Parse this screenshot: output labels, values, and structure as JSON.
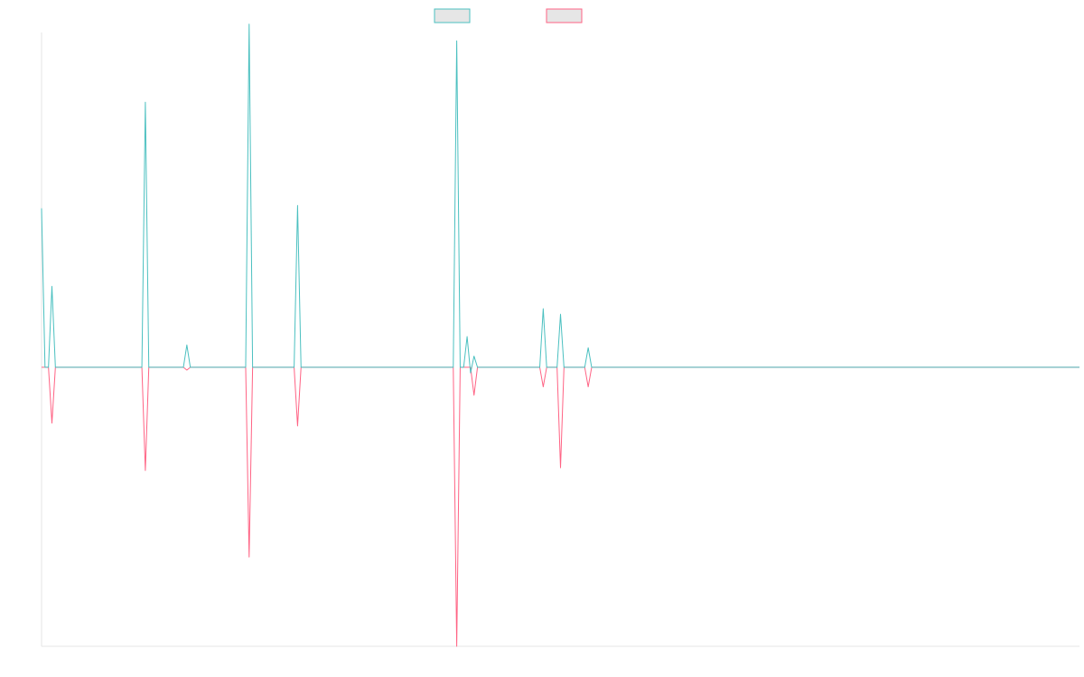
{
  "chart_data": {
    "type": "line",
    "title": "",
    "xlabel": "",
    "ylabel": "",
    "grid": false,
    "legend_position": "top-center",
    "ylim": [
      -1,
      1.2
    ],
    "x": [
      0,
      1,
      2,
      3,
      4,
      5,
      6,
      7,
      8,
      9,
      10,
      11,
      12,
      13,
      14,
      15,
      16,
      17,
      18,
      19,
      20,
      21,
      22,
      23,
      24,
      25,
      26,
      27,
      28,
      29,
      30,
      31,
      32,
      33,
      34,
      35,
      36,
      37,
      38,
      39,
      40,
      41,
      42,
      43,
      44,
      45,
      46,
      47,
      48,
      49,
      50,
      51,
      52,
      53,
      54,
      55,
      56,
      57,
      58,
      59,
      60,
      61,
      62,
      63,
      64,
      65,
      66,
      67,
      68,
      69,
      70,
      71,
      72,
      73,
      74,
      75,
      76,
      77,
      78,
      79,
      80,
      81,
      82,
      83,
      84,
      85,
      86,
      87,
      88,
      89,
      90,
      91,
      92,
      93,
      94,
      95,
      96,
      97,
      98,
      99,
      100,
      101,
      102,
      103,
      104,
      105,
      106,
      107,
      108,
      109,
      110,
      111,
      112,
      113,
      114,
      115,
      116,
      117,
      118,
      119,
      120,
      121,
      122,
      123,
      124,
      125,
      126,
      127,
      128,
      129,
      130,
      131,
      132,
      133,
      134,
      135,
      136,
      137,
      138,
      139,
      140,
      141,
      142,
      143,
      144,
      145,
      146,
      147,
      148,
      149,
      150,
      151,
      152,
      153,
      154,
      155,
      156,
      157,
      158,
      159,
      160,
      161,
      162,
      163,
      164,
      165,
      166,
      167,
      168,
      169,
      170,
      171,
      172,
      173,
      174,
      175,
      176,
      177,
      178,
      179,
      180,
      181,
      182,
      183,
      184,
      185,
      186,
      187,
      188,
      189,
      190,
      191,
      192,
      193,
      194,
      195,
      196,
      197,
      198,
      199,
      200,
      201,
      202,
      203,
      204,
      205,
      206,
      207,
      208,
      209,
      210,
      211,
      212,
      213,
      214,
      215,
      216,
      217,
      218,
      219,
      220,
      221,
      222,
      223,
      224,
      225,
      226,
      227,
      228,
      229,
      230,
      231,
      232,
      233,
      234,
      235,
      236,
      237,
      238,
      239,
      240,
      241,
      242,
      243,
      244,
      245,
      246,
      247,
      248,
      249,
      250,
      251,
      252,
      253,
      254,
      255,
      256,
      257,
      258,
      259,
      260,
      261,
      262,
      263,
      264,
      265,
      266,
      267,
      268,
      269,
      270,
      271,
      272,
      273,
      274,
      275,
      276,
      277,
      278,
      279,
      280,
      281,
      282,
      283,
      284,
      285,
      286,
      287,
      288,
      289,
      290,
      291,
      292,
      293,
      294,
      295,
      296,
      297,
      298,
      299,
      300
    ],
    "series": [
      {
        "name": "",
        "color": "#4bc0c0",
        "fill": "#e6e6e6",
        "points": [
          [
            0,
            0.57
          ],
          [
            1,
            0
          ],
          [
            2,
            0
          ],
          [
            3,
            0.29
          ],
          [
            4,
            0
          ],
          [
            29,
            0
          ],
          [
            30,
            0.95
          ],
          [
            31,
            0
          ],
          [
            41,
            0
          ],
          [
            42,
            0.08
          ],
          [
            43,
            0
          ],
          [
            59,
            0
          ],
          [
            60,
            1.23
          ],
          [
            61,
            0
          ],
          [
            73,
            0
          ],
          [
            74,
            0.58
          ],
          [
            75,
            0
          ],
          [
            119,
            0
          ],
          [
            120,
            1.17
          ],
          [
            121,
            0
          ],
          [
            122,
            0
          ],
          [
            123,
            0.11
          ],
          [
            124,
            -0.02
          ],
          [
            125,
            0.04
          ],
          [
            126,
            0
          ],
          [
            144,
            0
          ],
          [
            145,
            0.21
          ],
          [
            146,
            0
          ],
          [
            149,
            0
          ],
          [
            150,
            0.19
          ],
          [
            151,
            0
          ],
          [
            157,
            0
          ],
          [
            158,
            0.07
          ],
          [
            159,
            0
          ],
          [
            300,
            0
          ]
        ]
      },
      {
        "name": "",
        "color": "#ff6384",
        "fill": "#e6e6e6",
        "points": [
          [
            0,
            0
          ],
          [
            1,
            0
          ],
          [
            2,
            0
          ],
          [
            3,
            -0.2
          ],
          [
            4,
            0
          ],
          [
            29,
            0
          ],
          [
            30,
            -0.37
          ],
          [
            31,
            0
          ],
          [
            41,
            0
          ],
          [
            42,
            -0.01
          ],
          [
            43,
            0
          ],
          [
            59,
            0
          ],
          [
            60,
            -0.68
          ],
          [
            61,
            0
          ],
          [
            73,
            0
          ],
          [
            74,
            -0.21
          ],
          [
            75,
            0
          ],
          [
            119,
            0
          ],
          [
            120,
            -1
          ],
          [
            121,
            0
          ],
          [
            124,
            0
          ],
          [
            125,
            -0.1
          ],
          [
            126,
            0
          ],
          [
            144,
            0
          ],
          [
            145,
            -0.07
          ],
          [
            146,
            0
          ],
          [
            149,
            0
          ],
          [
            150,
            -0.36
          ],
          [
            151,
            0
          ],
          [
            157,
            0
          ],
          [
            158,
            -0.07
          ],
          [
            159,
            0
          ],
          [
            300,
            0
          ]
        ]
      }
    ]
  }
}
